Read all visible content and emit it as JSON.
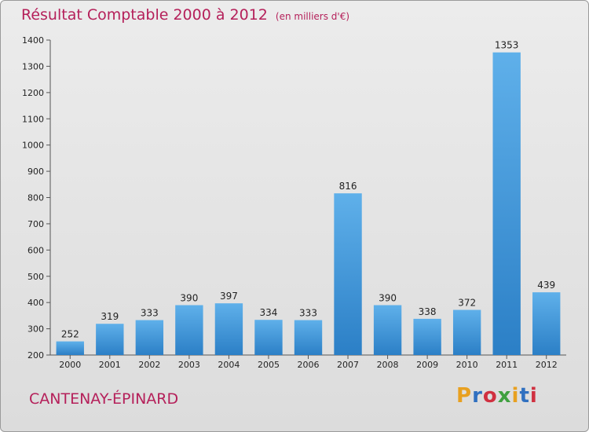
{
  "header": {
    "title": "Résultat Comptable 2000 à 2012",
    "unit": "(en milliers d'€)"
  },
  "footer": {
    "commune": "CANTENAY-ÉPINARD",
    "logo_text": "Proxiti",
    "logo_colors": [
      "#e8a020",
      "#3070c0",
      "#d03040",
      "#40a040",
      "#e8a020",
      "#3070c0",
      "#d03040"
    ]
  },
  "colors": {
    "title": "#b5205a",
    "bar_light": "#5fb0ea",
    "bar_dark": "#2b7fc6"
  },
  "chart_data": {
    "type": "bar",
    "categories": [
      "2000",
      "2001",
      "2002",
      "2003",
      "2004",
      "2005",
      "2006",
      "2007",
      "2008",
      "2009",
      "2010",
      "2011",
      "2012"
    ],
    "values": [
      252,
      319,
      333,
      390,
      397,
      334,
      333,
      816,
      390,
      338,
      372,
      1353,
      439
    ],
    "title": "Résultat Comptable 2000 à 2012",
    "xlabel": "",
    "ylabel": "",
    "ylim": [
      200,
      1400
    ],
    "yticks": [
      200,
      300,
      400,
      500,
      600,
      700,
      800,
      900,
      1000,
      1100,
      1200,
      1300,
      1400
    ],
    "grid": false,
    "legend": "none"
  }
}
